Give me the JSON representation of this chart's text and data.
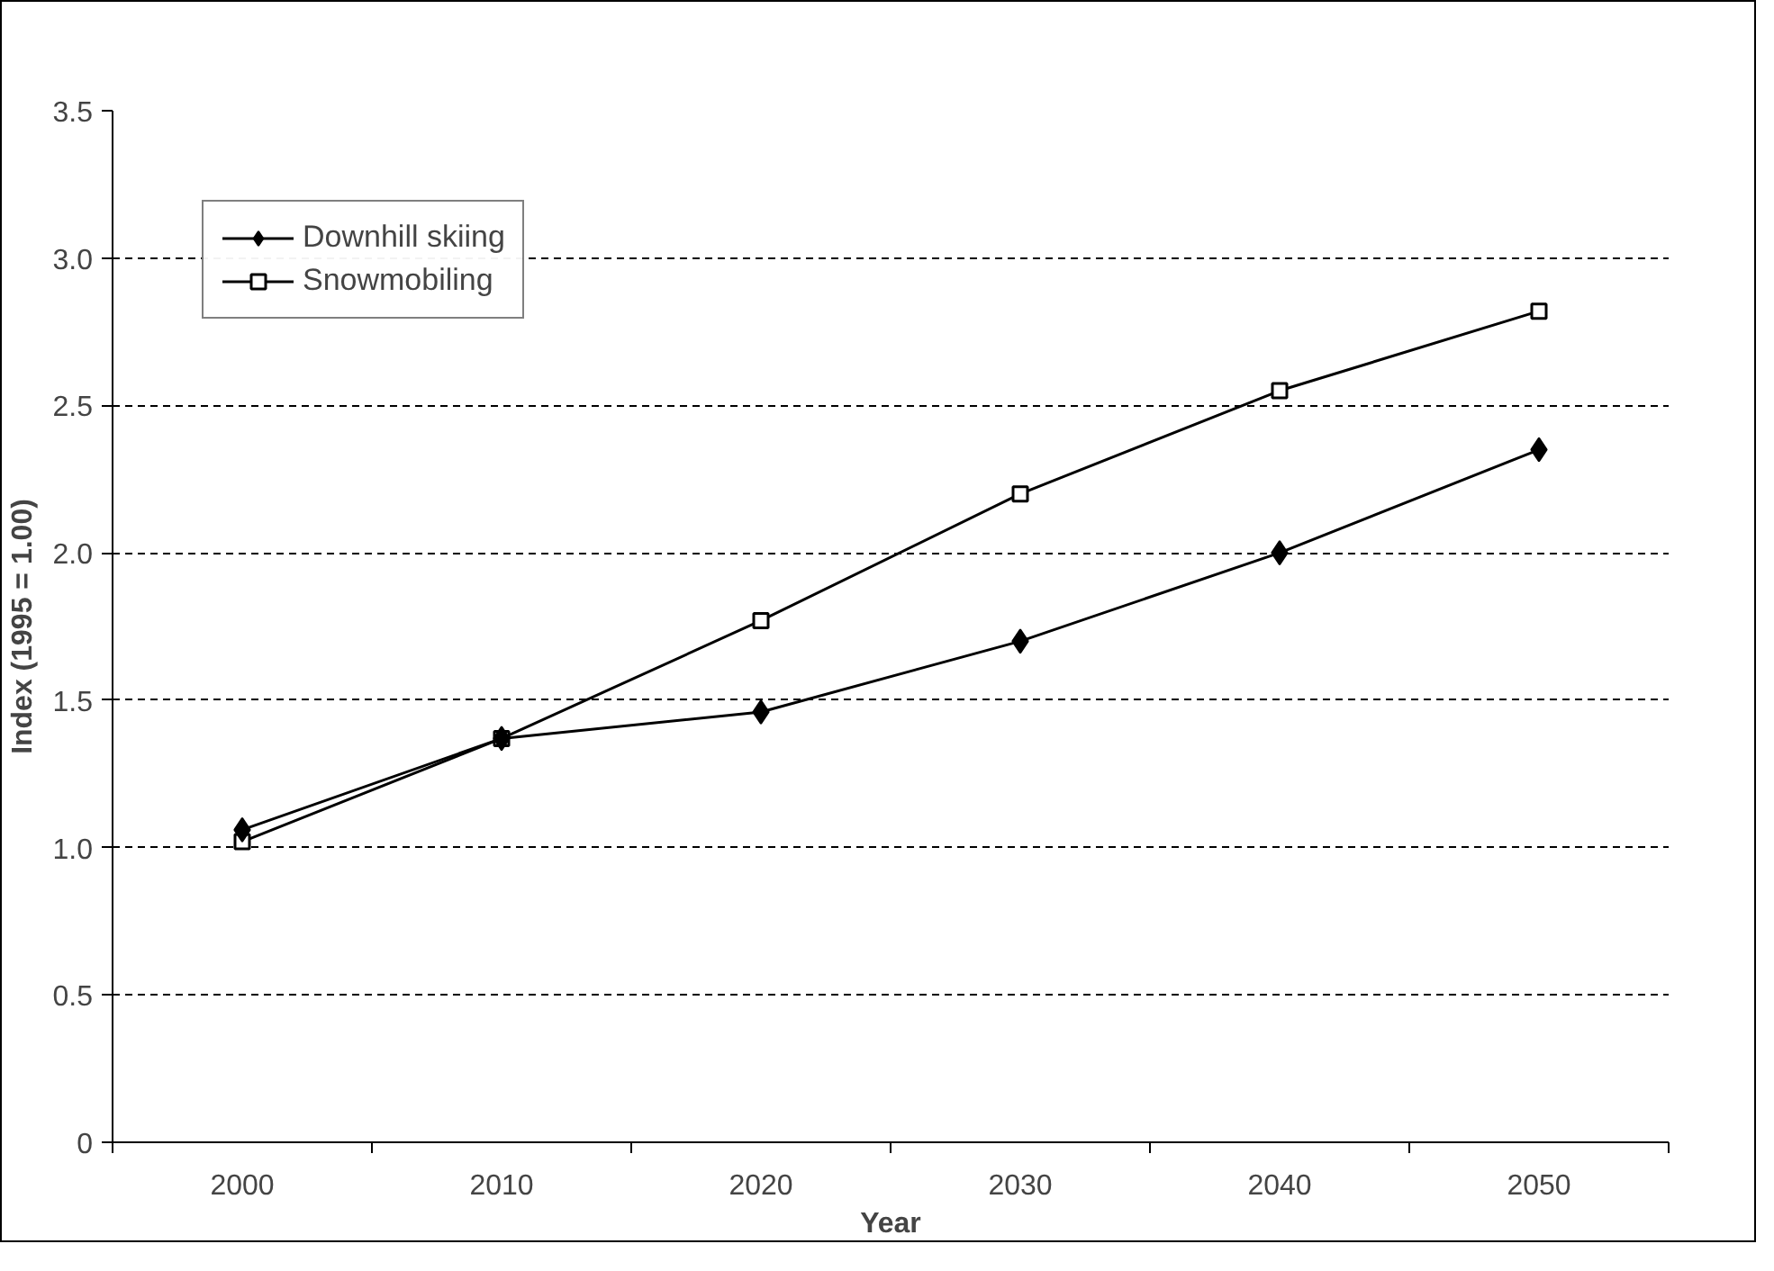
{
  "chart_data": {
    "type": "line",
    "xlabel": "Year",
    "ylabel": "Index (1995 = 1.00)",
    "categories": [
      "2000",
      "2010",
      "2020",
      "2030",
      "2040",
      "2050"
    ],
    "series": [
      {
        "name": "Downhill skiing",
        "color": "#000000",
        "marker": "diamond",
        "values": [
          1.06,
          1.37,
          1.46,
          1.7,
          2.0,
          2.35
        ]
      },
      {
        "name": "Snowmobiling",
        "color": "#000000",
        "marker": "square",
        "values": [
          1.02,
          1.37,
          1.77,
          2.2,
          2.55,
          2.82
        ]
      }
    ],
    "ylim": [
      0,
      3.5
    ],
    "yticks": [
      0,
      0.5,
      {
        "value": 1,
        "label": "1.0"
      },
      1.5,
      {
        "value": 2,
        "label": "2.0"
      },
      2.5,
      {
        "value": 3,
        "label": "3.0"
      },
      3.5
    ],
    "grid": "y",
    "legend": "top left",
    "line_style": "solid"
  }
}
